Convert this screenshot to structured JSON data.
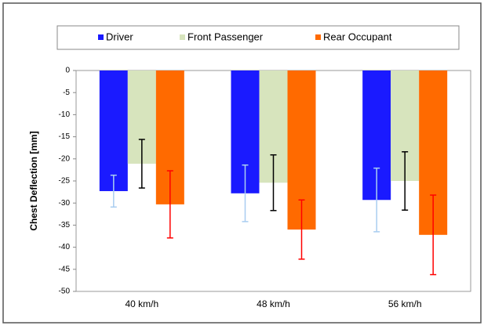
{
  "chart_data": {
    "type": "bar",
    "y_label": "Chest Deflection [mm]",
    "categories": [
      "40 km/h",
      "48 km/h",
      "56 km/h"
    ],
    "series": [
      {
        "name": "Driver",
        "color": "#1a1aff",
        "error_color": "#a9cdf0",
        "values": [
          -27.3,
          -27.8,
          -29.3
        ],
        "errors": [
          3.6,
          6.4,
          7.2
        ]
      },
      {
        "name": "Front Passenger",
        "color": "#d7e4bd",
        "error_color": "#000000",
        "values": [
          -21.1,
          -25.4,
          -25.0
        ],
        "errors": [
          5.5,
          6.3,
          6.6
        ]
      },
      {
        "name": "Rear Occupant",
        "color": "#ff6a00",
        "error_color": "#ff0000",
        "values": [
          -30.3,
          -36.0,
          -37.2
        ],
        "errors": [
          7.6,
          6.7,
          9.0
        ]
      }
    ],
    "ylim": [
      -50,
      0
    ],
    "yticks": [
      0,
      -5,
      -10,
      -15,
      -20,
      -25,
      -30,
      -35,
      -40,
      -45,
      -50
    ],
    "grid": false
  }
}
